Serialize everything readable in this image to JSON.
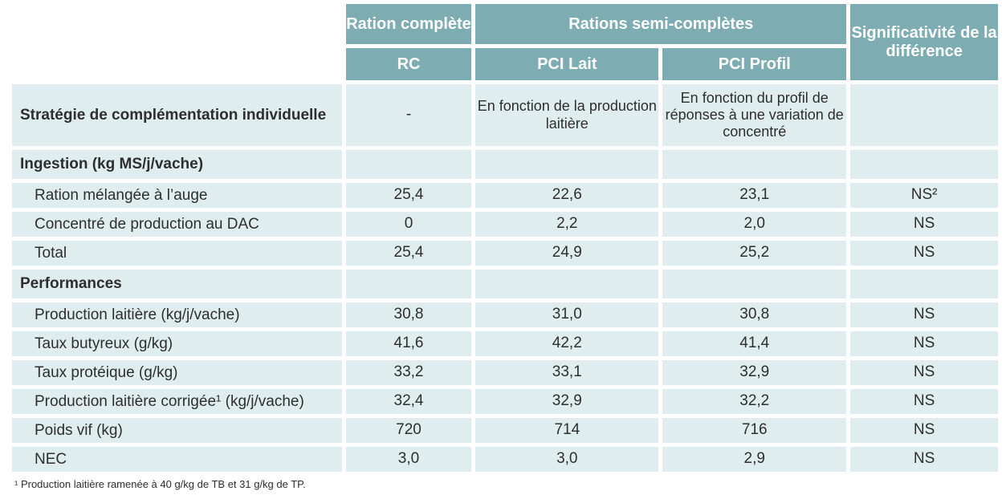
{
  "colors": {
    "header_teal": "#7dadb2",
    "row_light": "#dfedee",
    "header_text": "#ffffff",
    "body_text": "#2e2e2e"
  },
  "table": {
    "header": {
      "ration_complete": "Ration complète",
      "rations_semi_completes": "Rations semi-complètes",
      "significativite": "Significativité de la différence",
      "sub_rc": "RC",
      "sub_pci_lait": "PCI Lait",
      "sub_pci_profil": "PCI Profil"
    },
    "rows": [
      {
        "label": "Stratégie de complémentation individuelle",
        "rc": "-",
        "pci_lait": "En fonction de la production laitière",
        "pci_profil": "En fonction du profil de réponses à une variation de concentré",
        "signif": ""
      },
      {
        "label": "Ingestion (kg MS/j/vache)"
      },
      {
        "label": "Ration mélangée à l’auge",
        "rc": "25,4",
        "pci_lait": "22,6",
        "pci_profil": "23,1",
        "signif": "NS²"
      },
      {
        "label": "Concentré de production au DAC",
        "rc": "0",
        "pci_lait": "2,2",
        "pci_profil": "2,0",
        "signif": "NS"
      },
      {
        "label": "Total",
        "rc": "25,4",
        "pci_lait": "24,9",
        "pci_profil": "25,2",
        "signif": "NS"
      },
      {
        "label": "Performances"
      },
      {
        "label": "Production laitière (kg/j/vache)",
        "rc": "30,8",
        "pci_lait": "31,0",
        "pci_profil": "30,8",
        "signif": "NS"
      },
      {
        "label": "Taux butyreux (g/kg)",
        "rc": "41,6",
        "pci_lait": "42,2",
        "pci_profil": "41,4",
        "signif": "NS"
      },
      {
        "label": "Taux protéique (g/kg)",
        "rc": "33,2",
        "pci_lait": "33,1",
        "pci_profil": "32,9",
        "signif": "NS"
      },
      {
        "label": "Production laitière corrigée¹ (kg/j/vache)",
        "rc": "32,4",
        "pci_lait": "32,9",
        "pci_profil": "32,2",
        "signif": "NS"
      },
      {
        "label": "Poids vif (kg)",
        "rc": "720",
        "pci_lait": "714",
        "pci_profil": "716",
        "signif": "NS"
      },
      {
        "label": "NEC",
        "rc": "3,0",
        "pci_lait": "3,0",
        "pci_profil": "2,9",
        "signif": "NS"
      }
    ],
    "footnote": "¹ Production laitière ramenée à 40 g/kg de TB et 31 g/kg de TP."
  }
}
